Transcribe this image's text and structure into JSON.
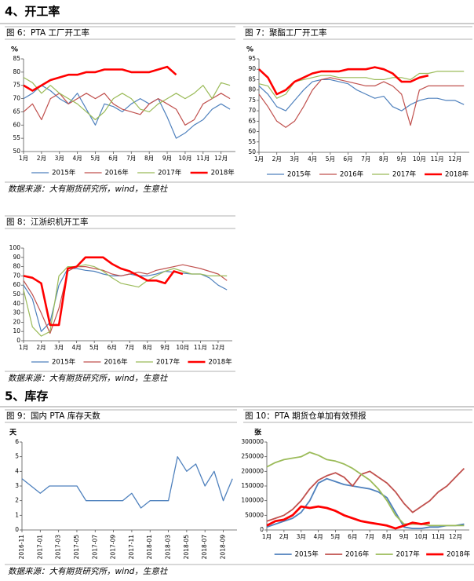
{
  "sections": [
    {
      "heading": "4、开工率"
    },
    {
      "heading": "5、库存"
    }
  ],
  "sources": [
    "数据来源：大有期货研究所，wind，生意社",
    "数据来源：大有期货研究所，wind，生意社",
    "数据来源：大有期货研究所，wind，生意社"
  ],
  "chart_data": [
    {
      "type": "line",
      "title": "图 6：PTA 工厂开工率",
      "ylabel": "%",
      "legend": "bottom",
      "x": [
        1,
        1.5,
        2,
        2.5,
        3,
        3.5,
        4,
        4.5,
        5,
        5.5,
        6,
        6.5,
        7,
        7.5,
        8,
        8.5,
        9,
        9.5,
        10,
        10.5,
        11,
        11.5,
        12,
        12.5
      ],
      "xlim": [
        1,
        12.8
      ],
      "xticks": [
        {
          "value": 1,
          "label": "1月"
        },
        {
          "value": 2,
          "label": "2月"
        },
        {
          "value": 3,
          "label": "3月"
        },
        {
          "value": 4,
          "label": "4月"
        },
        {
          "value": 5,
          "label": "5月"
        },
        {
          "value": 6,
          "label": "6月"
        },
        {
          "value": 7,
          "label": "7月"
        },
        {
          "value": 8,
          "label": "8月"
        },
        {
          "value": 9,
          "label": "9月"
        },
        {
          "value": 10,
          "label": "10月"
        },
        {
          "value": 11,
          "label": "11月"
        },
        {
          "value": 12,
          "label": "12月"
        }
      ],
      "ylim": [
        50,
        85
      ],
      "yticks": [
        50,
        55,
        60,
        65,
        70,
        75,
        80,
        85
      ],
      "series": [
        {
          "name": "2015年",
          "color": "#4f81bd",
          "linewidth": 1.2,
          "values": [
            70,
            72,
            75,
            73,
            70,
            68,
            72,
            66,
            60,
            68,
            67,
            65,
            68,
            70,
            68,
            70,
            63,
            55,
            57,
            60,
            62,
            66,
            68,
            66
          ]
        },
        {
          "name": "2016年",
          "color": "#c0504d",
          "linewidth": 1.2,
          "values": [
            65,
            68,
            62,
            70,
            72,
            68,
            70,
            72,
            70,
            72,
            68,
            66,
            65,
            64,
            68,
            70,
            68,
            66,
            60,
            62,
            68,
            70,
            72,
            70
          ]
        },
        {
          "name": "2017年",
          "color": "#9bbb59",
          "linewidth": 1.2,
          "values": [
            78,
            76,
            72,
            75,
            72,
            70,
            68,
            65,
            62,
            65,
            70,
            72,
            70,
            66,
            65,
            68,
            70,
            72,
            70,
            72,
            75,
            70,
            76,
            75
          ]
        },
        {
          "name": "2018年",
          "color": "#ff0000",
          "linewidth": 2.6,
          "values": [
            75,
            73,
            75,
            77,
            78,
            79,
            79,
            80,
            80,
            81,
            81,
            81,
            80,
            80,
            80,
            81,
            82,
            79,
            null,
            null,
            null,
            null,
            null,
            null
          ]
        }
      ]
    },
    {
      "type": "line",
      "title": "图 7：聚酯工厂开工率",
      "ylabel": "%",
      "legend": "bottom",
      "x": [
        1,
        1.5,
        2,
        2.5,
        3,
        3.5,
        4,
        4.5,
        5,
        5.5,
        6,
        6.5,
        7,
        7.5,
        8,
        8.5,
        9,
        9.5,
        10,
        10.5,
        11,
        11.5,
        12,
        12.5
      ],
      "xlim": [
        1,
        12.8
      ],
      "xticks": [
        {
          "value": 1,
          "label": "1月"
        },
        {
          "value": 2,
          "label": "2月"
        },
        {
          "value": 3,
          "label": "3月"
        },
        {
          "value": 4,
          "label": "4月"
        },
        {
          "value": 5,
          "label": "5月"
        },
        {
          "value": 6,
          "label": "6月"
        },
        {
          "value": 7,
          "label": "7月"
        },
        {
          "value": 8,
          "label": "8月"
        },
        {
          "value": 9,
          "label": "9月"
        },
        {
          "value": 10,
          "label": "10月"
        },
        {
          "value": 11,
          "label": "11月"
        },
        {
          "value": 12,
          "label": "12月"
        }
      ],
      "ylim": [
        50,
        95
      ],
      "yticks": [
        50,
        55,
        60,
        65,
        70,
        75,
        80,
        85,
        90,
        95
      ],
      "series": [
        {
          "name": "2015年",
          "color": "#4f81bd",
          "linewidth": 1.2,
          "values": [
            82,
            78,
            72,
            70,
            75,
            80,
            84,
            85,
            85,
            84,
            83,
            80,
            78,
            76,
            77,
            72,
            70,
            73,
            75,
            76,
            76,
            75,
            75,
            73
          ]
        },
        {
          "name": "2016年",
          "color": "#c0504d",
          "linewidth": 1.2,
          "values": [
            78,
            72,
            65,
            62,
            65,
            72,
            80,
            85,
            86,
            85,
            84,
            83,
            82,
            82,
            84,
            82,
            78,
            63,
            80,
            82,
            82,
            82,
            82,
            82
          ]
        },
        {
          "name": "2017年",
          "color": "#9bbb59",
          "linewidth": 1.2,
          "values": [
            83,
            82,
            76,
            78,
            84,
            85,
            86,
            87,
            87,
            86,
            86,
            86,
            86,
            85,
            85,
            86,
            86,
            85,
            88,
            88,
            89,
            89,
            89,
            89
          ]
        },
        {
          "name": "2018年",
          "color": "#ff0000",
          "linewidth": 2.6,
          "values": [
            90,
            86,
            78,
            80,
            84,
            86,
            88,
            89,
            89,
            89,
            90,
            90,
            90,
            91,
            90,
            88,
            84,
            84,
            86,
            87,
            null,
            null,
            null,
            null
          ]
        }
      ]
    },
    {
      "type": "line",
      "title": "图 8：江浙织机开工率",
      "legend": "bottom",
      "x": [
        1,
        1.5,
        2,
        2.5,
        3,
        3.5,
        4,
        4.5,
        5,
        5.5,
        6,
        6.5,
        7,
        7.5,
        8,
        8.5,
        9,
        9.5,
        10,
        10.5,
        11,
        11.5,
        12,
        12.5
      ],
      "xlim": [
        1,
        12.8
      ],
      "xticks": [
        {
          "value": 1,
          "label": "1月"
        },
        {
          "value": 2,
          "label": "2月"
        },
        {
          "value": 3,
          "label": "3月"
        },
        {
          "value": 4,
          "label": "4月"
        },
        {
          "value": 5,
          "label": "5月"
        },
        {
          "value": 6,
          "label": "6月"
        },
        {
          "value": 7,
          "label": "7月"
        },
        {
          "value": 8,
          "label": "8月"
        },
        {
          "value": 9,
          "label": "9月"
        },
        {
          "value": 10,
          "label": "10月"
        },
        {
          "value": 11,
          "label": "11月"
        },
        {
          "value": 12,
          "label": "12月"
        }
      ],
      "ylim": [
        0,
        100
      ],
      "yticks": [
        0,
        10,
        20,
        30,
        40,
        50,
        60,
        70,
        80,
        90,
        100
      ],
      "series": [
        {
          "name": "2015年",
          "color": "#4f81bd",
          "linewidth": 1.2,
          "values": [
            60,
            45,
            10,
            20,
            60,
            78,
            78,
            76,
            75,
            72,
            70,
            70,
            72,
            70,
            70,
            72,
            75,
            74,
            73,
            72,
            72,
            68,
            60,
            55
          ]
        },
        {
          "name": "2016年",
          "color": "#c0504d",
          "linewidth": 1.2,
          "values": [
            65,
            50,
            30,
            8,
            35,
            75,
            80,
            80,
            78,
            76,
            72,
            70,
            72,
            74,
            72,
            76,
            78,
            80,
            82,
            80,
            78,
            75,
            72,
            65
          ]
        },
        {
          "name": "2017年",
          "color": "#9bbb59",
          "linewidth": 1.2,
          "values": [
            55,
            15,
            5,
            10,
            70,
            80,
            80,
            82,
            80,
            75,
            68,
            62,
            60,
            58,
            65,
            70,
            75,
            78,
            75,
            72,
            72,
            70,
            70,
            70
          ]
        },
        {
          "name": "2018年",
          "color": "#ff0000",
          "linewidth": 2.6,
          "values": [
            70,
            68,
            62,
            17,
            17,
            78,
            80,
            90,
            90,
            90,
            83,
            78,
            75,
            70,
            65,
            65,
            62,
            75,
            72,
            null,
            null,
            null,
            null,
            null
          ]
        }
      ]
    },
    {
      "type": "line",
      "title": "图 9：国内 PTA 库存天数",
      "ylabel": "天",
      "x": [
        0,
        1,
        2,
        3,
        4,
        5,
        6,
        7,
        8,
        9,
        10,
        11,
        12,
        13,
        14,
        15,
        16,
        17,
        18,
        19,
        20,
        21,
        22,
        23
      ],
      "xlim": [
        0,
        23.5
      ],
      "xticks": [
        {
          "value": 0,
          "label": "2016-11"
        },
        {
          "value": 2,
          "label": "2017-01"
        },
        {
          "value": 4,
          "label": "2017-03"
        },
        {
          "value": 6,
          "label": "2017-05"
        },
        {
          "value": 8,
          "label": "2017-07"
        },
        {
          "value": 10,
          "label": "2017-09"
        },
        {
          "value": 12,
          "label": "2017-11"
        },
        {
          "value": 14,
          "label": "2018-01"
        },
        {
          "value": 16,
          "label": "2018-03"
        },
        {
          "value": 18,
          "label": "2018-05"
        },
        {
          "value": 20,
          "label": "2018-07"
        },
        {
          "value": 22,
          "label": "2018-09"
        }
      ],
      "ylim": [
        0,
        6
      ],
      "yticks": [
        0,
        1,
        2,
        3,
        4,
        5,
        6
      ],
      "series": [
        {
          "color": "#4f81bd",
          "linewidth": 1.3,
          "values": [
            3.5,
            3,
            2.5,
            3,
            3,
            3,
            3,
            2,
            2,
            2,
            2,
            2,
            2.5,
            1.5,
            2,
            2,
            2,
            5,
            4,
            4.5,
            3,
            4,
            2,
            3.5
          ]
        }
      ]
    },
    {
      "type": "line",
      "title": "图 10：PTA 期货仓单加有效预报",
      "ylabel": "张",
      "legend": "bottom",
      "x": [
        1,
        1.5,
        2,
        2.5,
        3,
        3.5,
        4,
        4.5,
        5,
        5.5,
        6,
        6.5,
        7,
        7.5,
        8,
        8.5,
        9,
        9.5,
        10,
        10.5,
        11,
        11.5,
        12,
        12.5
      ],
      "xlim": [
        1,
        12.8
      ],
      "xticks": [
        {
          "value": 1,
          "label": "1月"
        },
        {
          "value": 2,
          "label": "2月"
        },
        {
          "value": 3,
          "label": "3月"
        },
        {
          "value": 4,
          "label": "4月"
        },
        {
          "value": 5,
          "label": "5月"
        },
        {
          "value": 6,
          "label": "6月"
        },
        {
          "value": 7,
          "label": "7月"
        },
        {
          "value": 8,
          "label": "8月"
        },
        {
          "value": 9,
          "label": "9月"
        },
        {
          "value": 10,
          "label": "10月"
        },
        {
          "value": 11,
          "label": "11月"
        },
        {
          "value": 12,
          "label": "12月"
        }
      ],
      "ylim": [
        0,
        300000
      ],
      "yticks": [
        0,
        50000,
        100000,
        150000,
        200000,
        250000,
        300000
      ],
      "series": [
        {
          "name": "2015年",
          "color": "#4f81bd",
          "linewidth": 1.8,
          "values": [
            10000,
            20000,
            30000,
            40000,
            60000,
            100000,
            160000,
            175000,
            165000,
            155000,
            150000,
            145000,
            140000,
            130000,
            110000,
            60000,
            10000,
            5000,
            5000,
            10000,
            10000,
            15000,
            15000,
            20000
          ]
        },
        {
          "name": "2016年",
          "color": "#c0504d",
          "linewidth": 1.8,
          "values": [
            30000,
            40000,
            50000,
            70000,
            100000,
            140000,
            170000,
            185000,
            195000,
            180000,
            150000,
            190000,
            200000,
            180000,
            160000,
            130000,
            90000,
            60000,
            80000,
            100000,
            130000,
            150000,
            180000,
            210000
          ]
        },
        {
          "name": "2017年",
          "color": "#9bbb59",
          "linewidth": 1.8,
          "values": [
            215000,
            230000,
            240000,
            245000,
            250000,
            265000,
            255000,
            240000,
            235000,
            225000,
            210000,
            190000,
            170000,
            140000,
            100000,
            50000,
            20000,
            20000,
            20000,
            15000,
            15000,
            15000,
            15000,
            15000
          ]
        },
        {
          "name": "2018年",
          "color": "#ff0000",
          "linewidth": 2.8,
          "values": [
            15000,
            30000,
            35000,
            50000,
            80000,
            75000,
            80000,
            75000,
            65000,
            50000,
            40000,
            30000,
            25000,
            20000,
            15000,
            5000,
            15000,
            25000,
            20000,
            25000,
            null,
            null,
            null,
            null
          ]
        }
      ]
    }
  ]
}
